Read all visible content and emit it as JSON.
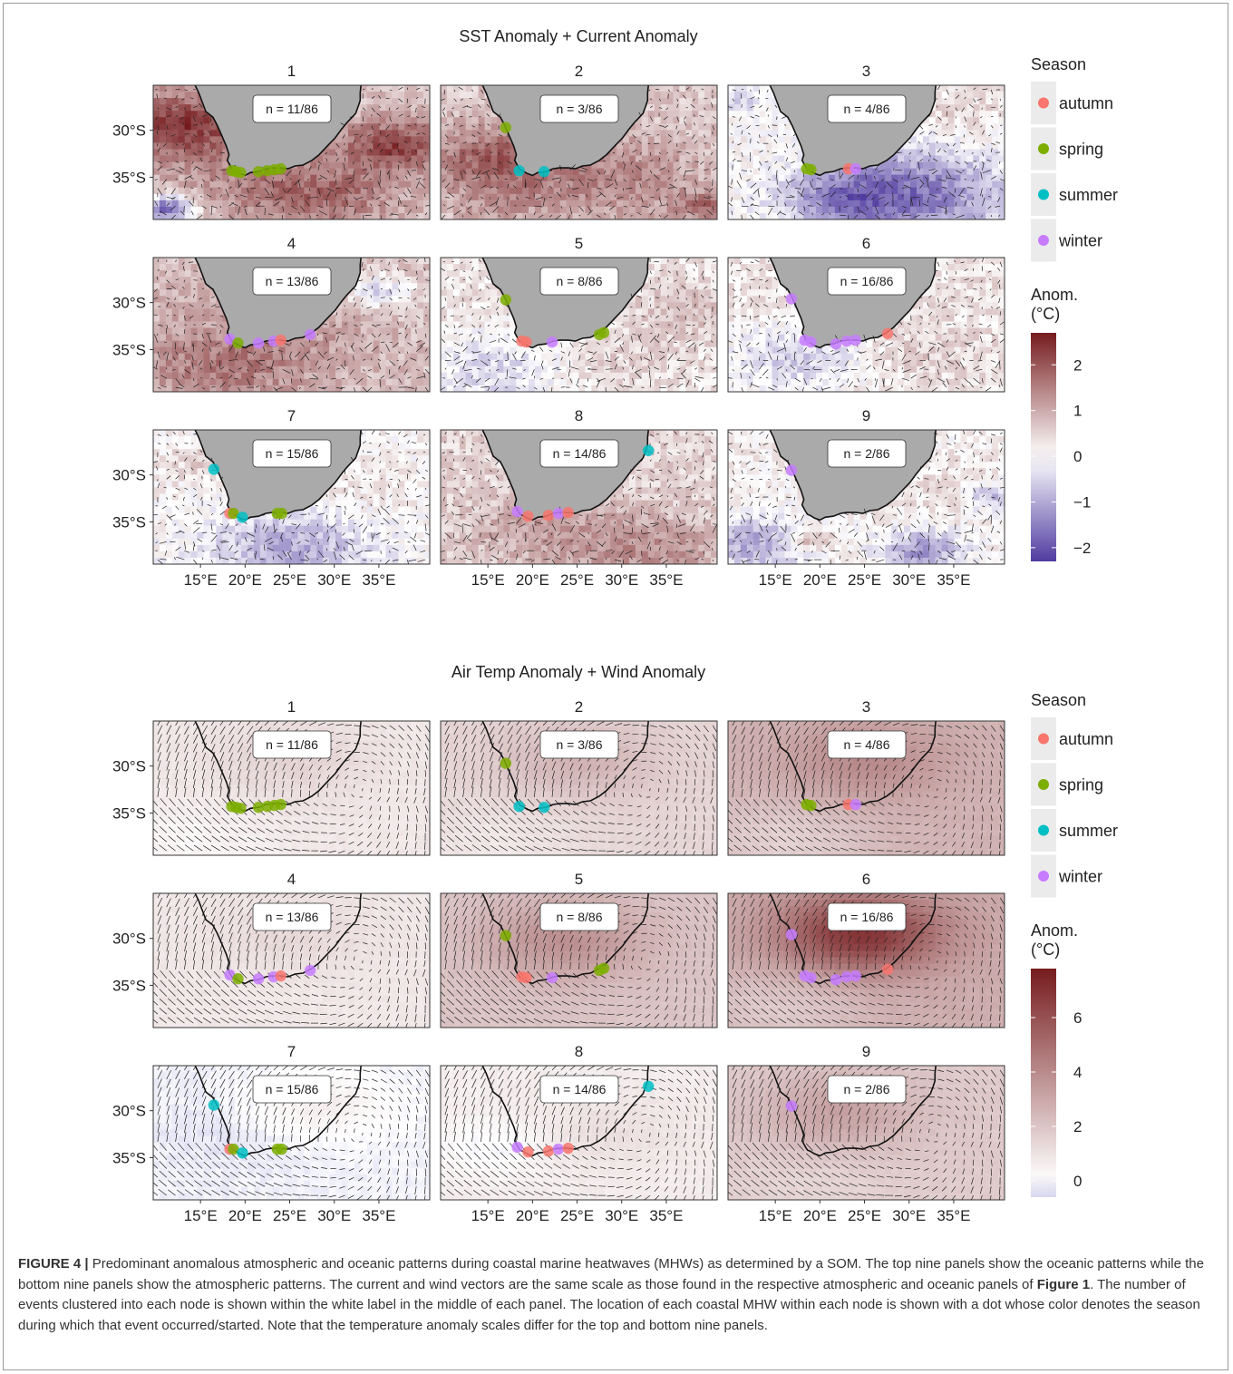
{
  "figures": [
    {
      "title": "SST Anomaly + Current Anomaly",
      "legend": {
        "season_title": "Season",
        "anom_title_line1": "Anom.",
        "anom_title_line2": "(°C)",
        "ticks": [
          "2",
          "1",
          "0",
          "−1",
          "−2"
        ],
        "tick_values": [
          2,
          1,
          0,
          -1,
          -2
        ],
        "range": [
          -2.3,
          2.7
        ]
      },
      "panels": [
        {
          "id": "1",
          "n": "n = 11/86",
          "field": "sst1"
        },
        {
          "id": "2",
          "n": "n = 3/86",
          "field": "sst2"
        },
        {
          "id": "3",
          "n": "n = 4/86",
          "field": "sst3"
        },
        {
          "id": "4",
          "n": "n = 13/86",
          "field": "sst4"
        },
        {
          "id": "5",
          "n": "n = 8/86",
          "field": "sst5"
        },
        {
          "id": "6",
          "n": "n = 16/86",
          "field": "sst6"
        },
        {
          "id": "7",
          "n": "n = 15/86",
          "field": "sst7"
        },
        {
          "id": "8",
          "n": "n = 14/86",
          "field": "sst8"
        },
        {
          "id": "9",
          "n": "n = 2/86",
          "field": "sst9"
        }
      ]
    },
    {
      "title": "Air Temp Anomaly + Wind Anomaly",
      "legend": {
        "season_title": "Season",
        "anom_title_line1": "Anom.",
        "anom_title_line2": "(°C)",
        "ticks": [
          "6",
          "4",
          "2",
          "0"
        ],
        "tick_values": [
          6,
          4,
          2,
          0
        ],
        "range": [
          -0.6,
          7.8
        ]
      },
      "panels": [
        {
          "id": "1",
          "n": "n = 11/86",
          "field": "air1"
        },
        {
          "id": "2",
          "n": "n = 3/86",
          "field": "air2"
        },
        {
          "id": "3",
          "n": "n = 4/86",
          "field": "air3"
        },
        {
          "id": "4",
          "n": "n = 13/86",
          "field": "air4"
        },
        {
          "id": "5",
          "n": "n = 8/86",
          "field": "air5"
        },
        {
          "id": "6",
          "n": "n = 16/86",
          "field": "air6"
        },
        {
          "id": "7",
          "n": "n = 15/86",
          "field": "air7"
        },
        {
          "id": "8",
          "n": "n = 14/86",
          "field": "air8"
        },
        {
          "id": "9",
          "n": "n = 2/86",
          "field": "air9"
        }
      ]
    }
  ],
  "axes": {
    "y_ticks": [
      "30°S",
      "35°S"
    ],
    "x_ticks": [
      "15°E",
      "20°E",
      "25°E",
      "30°E",
      "35°E"
    ]
  },
  "seasons": [
    {
      "name": "autumn",
      "color": "#F8766D"
    },
    {
      "name": "spring",
      "color": "#7CAE00"
    },
    {
      "name": "summer",
      "color": "#00BFC4"
    },
    {
      "name": "winter",
      "color": "#C77CFF"
    }
  ],
  "colors": {
    "land": "#aaaaaa",
    "warm": "#7a1d1d",
    "cool": "#4a3a9a",
    "neutral": "#ffffff"
  },
  "events": [
    {
      "panel": "1",
      "points": [
        [
          18.5,
          -34.3,
          "spring"
        ],
        [
          19,
          -34.4,
          "spring"
        ],
        [
          19.5,
          -34.5,
          "spring"
        ],
        [
          21.5,
          -34.4,
          "spring"
        ],
        [
          22.5,
          -34.3,
          "spring"
        ],
        [
          23.3,
          -34.2,
          "spring"
        ],
        [
          24,
          -34.1,
          "spring"
        ]
      ]
    },
    {
      "panel": "2",
      "points": [
        [
          17,
          -29.7,
          "spring"
        ],
        [
          18.5,
          -34.3,
          "summer"
        ],
        [
          21.3,
          -34.4,
          "summer"
        ]
      ]
    },
    {
      "panel": "3",
      "points": [
        [
          18.5,
          -34.1,
          "spring"
        ],
        [
          19,
          -34.2,
          "spring"
        ],
        [
          23.2,
          -34.1,
          "autumn"
        ],
        [
          24,
          -34.1,
          "winter"
        ]
      ]
    },
    {
      "panel": "4",
      "points": [
        [
          18.3,
          -33.9,
          "winter"
        ],
        [
          19.2,
          -34.3,
          "spring"
        ],
        [
          21.5,
          -34.3,
          "winter"
        ],
        [
          23.2,
          -34.1,
          "winter"
        ],
        [
          24,
          -34,
          "autumn"
        ],
        [
          27.3,
          -33.4,
          "winter"
        ]
      ]
    },
    {
      "panel": "5",
      "points": [
        [
          17,
          -29.7,
          "spring"
        ],
        [
          18.8,
          -34.1,
          "autumn"
        ],
        [
          19.3,
          -34.2,
          "autumn"
        ],
        [
          22.2,
          -34.2,
          "winter"
        ],
        [
          27.5,
          -33.4,
          "spring"
        ],
        [
          28,
          -33.2,
          "spring"
        ]
      ]
    },
    {
      "panel": "6",
      "points": [
        [
          16.8,
          -29.6,
          "winter"
        ],
        [
          18.3,
          -34,
          "winter"
        ],
        [
          19,
          -34.2,
          "winter"
        ],
        [
          21.8,
          -34.4,
          "winter"
        ],
        [
          23,
          -34.1,
          "winter"
        ],
        [
          24,
          -34,
          "winter"
        ],
        [
          27.6,
          -33.3,
          "autumn"
        ]
      ]
    },
    {
      "panel": "7",
      "points": [
        [
          16.5,
          -29.4,
          "summer"
        ],
        [
          18.3,
          -34.1,
          "autumn"
        ],
        [
          18.7,
          -34.1,
          "spring"
        ],
        [
          19.7,
          -34.5,
          "summer"
        ],
        [
          23.6,
          -34.1,
          "spring"
        ],
        [
          24.1,
          -34.1,
          "spring"
        ]
      ]
    },
    {
      "panel": "8",
      "points": [
        [
          18.3,
          -33.9,
          "winter"
        ],
        [
          19.5,
          -34.4,
          "autumn"
        ],
        [
          21.8,
          -34.3,
          "autumn"
        ],
        [
          22.9,
          -34.1,
          "winter"
        ],
        [
          24,
          -34,
          "autumn"
        ],
        [
          33,
          -27.4,
          "summer"
        ]
      ]
    },
    {
      "panel": "9",
      "points": [
        [
          16.8,
          -29.5,
          "winter"
        ]
      ]
    }
  ],
  "caption": {
    "label": "FIGURE 4 |",
    "text_before_ref": "Predominant anomalous atmospheric and oceanic patterns during coastal marine heatwaves (MHWs) as determined by a SOM. The top nine panels show the oceanic patterns while the bottom nine panels show the atmospheric patterns. The current and wind vectors are the same scale as those found in the respective atmospheric and oceanic panels of",
    "ref": "Figure 1",
    "text_after_ref": ". The number of events clustered into each node is shown within the white label in the middle of each panel. The location of each coastal MHW within each node is shown with a dot whose color denotes the season during which that event occurred/started. Note that the temperature anomaly scales differ for the top and bottom nine panels."
  }
}
